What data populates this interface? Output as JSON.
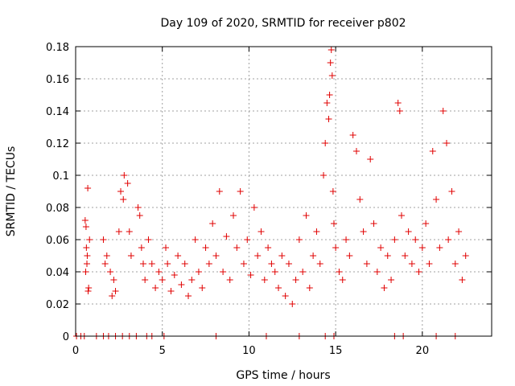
{
  "chart_data": {
    "type": "scatter",
    "title": "Day 109 of 2020, SRMTID for receiver p802",
    "xlabel": "GPS time / hours",
    "ylabel": "SRMTID / TECUs",
    "xlim": [
      0,
      24
    ],
    "ylim": [
      0,
      0.18
    ],
    "grid": true,
    "marker": "+",
    "color": "#e00000",
    "x_ticks": [
      0,
      5,
      10,
      15,
      20
    ],
    "x_tick_labels": [
      "0",
      "5",
      "10",
      "15",
      "20"
    ],
    "y_ticks": [
      0,
      0.02,
      0.04,
      0.06,
      0.08,
      0.1,
      0.12,
      0.14,
      0.16,
      0.18
    ],
    "y_tick_labels": [
      "0",
      "0.02",
      "0.04",
      "0.06",
      "0.08",
      "0.1",
      "0.12",
      "0.14",
      "0.16",
      "0.18"
    ],
    "series": [
      {
        "name": "SRMTID",
        "points": [
          [
            0.55,
            0.072
          ],
          [
            0.6,
            0.068
          ],
          [
            0.65,
            0.045
          ],
          [
            0.7,
            0.092
          ],
          [
            0.75,
            0.03
          ],
          [
            0.62,
            0.055
          ],
          [
            0.58,
            0.04
          ],
          [
            0.72,
            0.028
          ],
          [
            0.8,
            0.06
          ],
          [
            0.67,
            0.05
          ],
          [
            1.6,
            0.06
          ],
          [
            1.7,
            0.045
          ],
          [
            1.8,
            0.05
          ],
          [
            2.0,
            0.04
          ],
          [
            2.1,
            0.025
          ],
          [
            2.2,
            0.035
          ],
          [
            2.3,
            0.028
          ],
          [
            2.5,
            0.065
          ],
          [
            2.6,
            0.09
          ],
          [
            2.75,
            0.085
          ],
          [
            2.8,
            0.1
          ],
          [
            3.0,
            0.095
          ],
          [
            3.1,
            0.065
          ],
          [
            3.2,
            0.05
          ],
          [
            3.6,
            0.08
          ],
          [
            3.7,
            0.075
          ],
          [
            3.8,
            0.055
          ],
          [
            3.9,
            0.045
          ],
          [
            4.0,
            0.035
          ],
          [
            4.2,
            0.06
          ],
          [
            4.4,
            0.045
          ],
          [
            4.6,
            0.03
          ],
          [
            4.8,
            0.04
          ],
          [
            5.0,
            0.035
          ],
          [
            5.2,
            0.055
          ],
          [
            5.3,
            0.045
          ],
          [
            5.5,
            0.028
          ],
          [
            5.7,
            0.038
          ],
          [
            5.9,
            0.05
          ],
          [
            6.1,
            0.032
          ],
          [
            6.3,
            0.045
          ],
          [
            6.5,
            0.025
          ],
          [
            6.7,
            0.035
          ],
          [
            6.9,
            0.06
          ],
          [
            7.1,
            0.04
          ],
          [
            7.3,
            0.03
          ],
          [
            7.5,
            0.055
          ],
          [
            7.7,
            0.045
          ],
          [
            7.9,
            0.07
          ],
          [
            8.1,
            0.05
          ],
          [
            8.3,
            0.09
          ],
          [
            8.5,
            0.04
          ],
          [
            8.7,
            0.062
          ],
          [
            8.9,
            0.035
          ],
          [
            9.1,
            0.075
          ],
          [
            9.3,
            0.055
          ],
          [
            9.5,
            0.09
          ],
          [
            9.7,
            0.045
          ],
          [
            9.9,
            0.06
          ],
          [
            10.1,
            0.038
          ],
          [
            10.3,
            0.08
          ],
          [
            10.5,
            0.05
          ],
          [
            10.7,
            0.065
          ],
          [
            10.9,
            0.035
          ],
          [
            11.1,
            0.055
          ],
          [
            11.3,
            0.045
          ],
          [
            11.5,
            0.04
          ],
          [
            11.7,
            0.03
          ],
          [
            11.9,
            0.05
          ],
          [
            12.1,
            0.025
          ],
          [
            12.3,
            0.045
          ],
          [
            12.5,
            0.02
          ],
          [
            12.7,
            0.035
          ],
          [
            12.9,
            0.06
          ],
          [
            13.1,
            0.04
          ],
          [
            13.3,
            0.075
          ],
          [
            13.5,
            0.03
          ],
          [
            13.7,
            0.05
          ],
          [
            13.9,
            0.065
          ],
          [
            14.1,
            0.045
          ],
          [
            14.3,
            0.1
          ],
          [
            14.4,
            0.12
          ],
          [
            14.5,
            0.145
          ],
          [
            14.6,
            0.135
          ],
          [
            14.65,
            0.15
          ],
          [
            14.7,
            0.17
          ],
          [
            14.75,
            0.178
          ],
          [
            14.8,
            0.162
          ],
          [
            14.85,
            0.09
          ],
          [
            14.9,
            0.07
          ],
          [
            15.0,
            0.055
          ],
          [
            15.2,
            0.04
          ],
          [
            15.4,
            0.035
          ],
          [
            15.6,
            0.06
          ],
          [
            15.8,
            0.05
          ],
          [
            16.0,
            0.125
          ],
          [
            16.2,
            0.115
          ],
          [
            16.4,
            0.085
          ],
          [
            16.6,
            0.065
          ],
          [
            16.8,
            0.045
          ],
          [
            17.0,
            0.11
          ],
          [
            17.2,
            0.07
          ],
          [
            17.4,
            0.04
          ],
          [
            17.6,
            0.055
          ],
          [
            17.8,
            0.03
          ],
          [
            18.0,
            0.05
          ],
          [
            18.2,
            0.035
          ],
          [
            18.4,
            0.06
          ],
          [
            18.6,
            0.145
          ],
          [
            18.7,
            0.14
          ],
          [
            18.8,
            0.075
          ],
          [
            19.0,
            0.05
          ],
          [
            19.2,
            0.065
          ],
          [
            19.4,
            0.045
          ],
          [
            19.6,
            0.06
          ],
          [
            19.8,
            0.04
          ],
          [
            20.0,
            0.055
          ],
          [
            20.2,
            0.07
          ],
          [
            20.4,
            0.045
          ],
          [
            20.6,
            0.115
          ],
          [
            20.8,
            0.085
          ],
          [
            21.0,
            0.055
          ],
          [
            21.2,
            0.14
          ],
          [
            21.4,
            0.12
          ],
          [
            21.5,
            0.06
          ],
          [
            21.7,
            0.09
          ],
          [
            21.9,
            0.045
          ],
          [
            22.1,
            0.065
          ],
          [
            22.3,
            0.035
          ],
          [
            22.5,
            0.05
          ],
          [
            0.05,
            0
          ],
          [
            0.3,
            0
          ],
          [
            0.5,
            0
          ],
          [
            1.2,
            0
          ],
          [
            1.6,
            0
          ],
          [
            1.9,
            0
          ],
          [
            2.3,
            0
          ],
          [
            2.7,
            0
          ],
          [
            3.1,
            0
          ],
          [
            3.5,
            0
          ],
          [
            4.1,
            0
          ],
          [
            4.4,
            0
          ],
          [
            5.1,
            0
          ],
          [
            8.1,
            0
          ],
          [
            11.0,
            0
          ],
          [
            12.9,
            0
          ],
          [
            14.4,
            0
          ],
          [
            14.9,
            0
          ],
          [
            18.4,
            0
          ],
          [
            18.9,
            0
          ],
          [
            20.8,
            0
          ],
          [
            21.9,
            0
          ]
        ]
      }
    ]
  }
}
